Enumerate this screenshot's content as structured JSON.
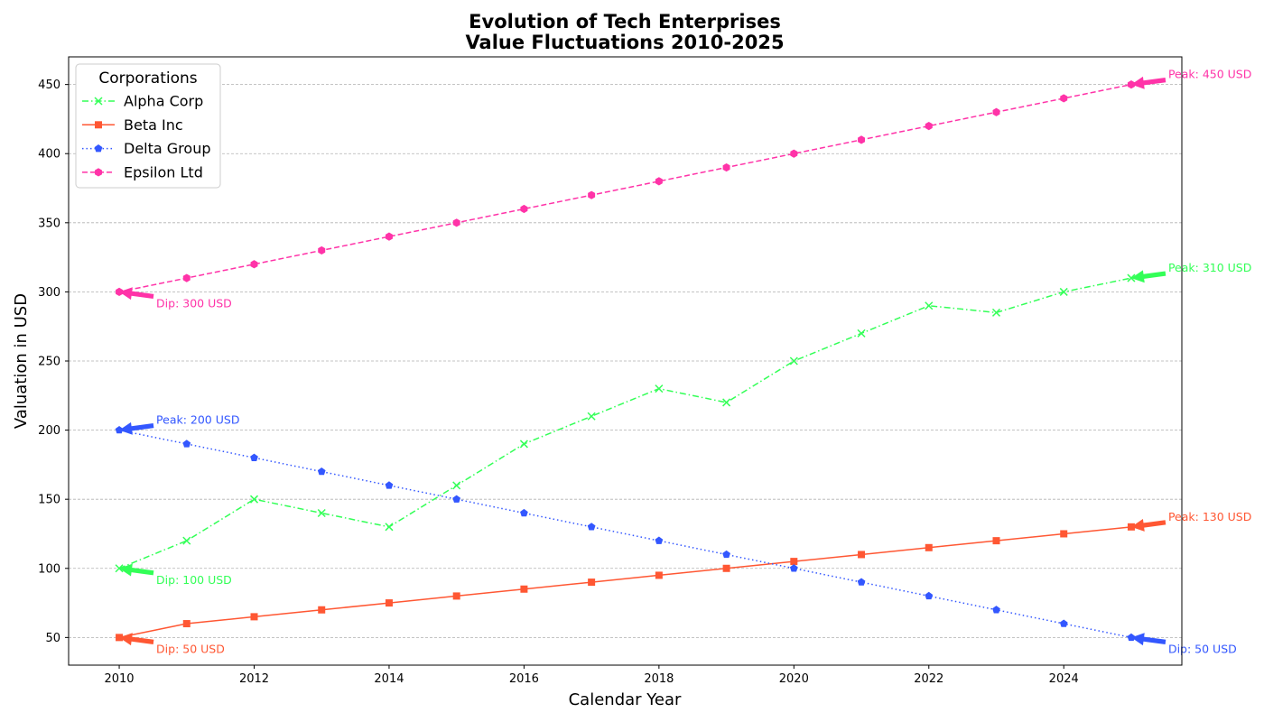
{
  "chart_data": {
    "type": "line",
    "title": "Evolution of Tech Enterprises",
    "subtitle": "Value Fluctuations 2010-2025",
    "xlabel": "Calendar Year",
    "ylabel": "Valuation in USD",
    "x": [
      2010,
      2011,
      2012,
      2013,
      2014,
      2015,
      2016,
      2017,
      2018,
      2019,
      2020,
      2021,
      2022,
      2023,
      2024,
      2025
    ],
    "xlim": [
      2009.25,
      2025.75
    ],
    "ylim": [
      30,
      470
    ],
    "xticks": [
      "2010",
      "2012",
      "2014",
      "2016",
      "2018",
      "2020",
      "2022",
      "2024"
    ],
    "yticks": [
      "50",
      "100",
      "150",
      "200",
      "250",
      "300",
      "350",
      "400",
      "450"
    ],
    "grid": "horizontal dashed",
    "legend": {
      "title": "Corporations",
      "placement": "upper-left"
    },
    "series": [
      {
        "name": "Alpha Corp",
        "color": "#33ff57",
        "linestyle": "dashdot",
        "marker": "x",
        "values": [
          100,
          120,
          150,
          140,
          130,
          160,
          190,
          210,
          230,
          220,
          250,
          270,
          290,
          285,
          300,
          310
        ]
      },
      {
        "name": "Beta Inc",
        "color": "#ff5733",
        "linestyle": "solid",
        "marker": "square",
        "values": [
          50,
          60,
          65,
          70,
          75,
          80,
          85,
          90,
          95,
          100,
          105,
          110,
          115,
          120,
          125,
          130
        ]
      },
      {
        "name": "Delta Group",
        "color": "#3357ff",
        "linestyle": "dotted",
        "marker": "pentagon",
        "values": [
          200,
          190,
          180,
          170,
          160,
          150,
          140,
          130,
          120,
          110,
          100,
          90,
          80,
          70,
          60,
          50
        ]
      },
      {
        "name": "Epsilon Ltd",
        "color": "#ff33a8",
        "linestyle": "dashed",
        "marker": "hexagon",
        "values": [
          300,
          310,
          320,
          330,
          340,
          350,
          360,
          370,
          380,
          390,
          400,
          410,
          420,
          430,
          440,
          450
        ]
      }
    ],
    "annotations": [
      {
        "text": "Peak: 310 USD",
        "series": 0,
        "x": 2025,
        "y": 310,
        "side": "right-up"
      },
      {
        "text": "Dip: 100 USD",
        "series": 0,
        "x": 2010,
        "y": 100,
        "side": "right-down"
      },
      {
        "text": "Peak: 130 USD",
        "series": 1,
        "x": 2025,
        "y": 130,
        "side": "right-up"
      },
      {
        "text": "Dip: 50 USD",
        "series": 1,
        "x": 2010,
        "y": 50,
        "side": "right-down"
      },
      {
        "text": "Peak: 200 USD",
        "series": 2,
        "x": 2010,
        "y": 200,
        "side": "right-up"
      },
      {
        "text": "Dip: 50 USD",
        "series": 2,
        "x": 2025,
        "y": 50,
        "side": "right-down"
      },
      {
        "text": "Peak: 450 USD",
        "series": 3,
        "x": 2025,
        "y": 450,
        "side": "right-up"
      },
      {
        "text": "Dip: 300 USD",
        "series": 3,
        "x": 2010,
        "y": 300,
        "side": "right-down"
      }
    ]
  }
}
